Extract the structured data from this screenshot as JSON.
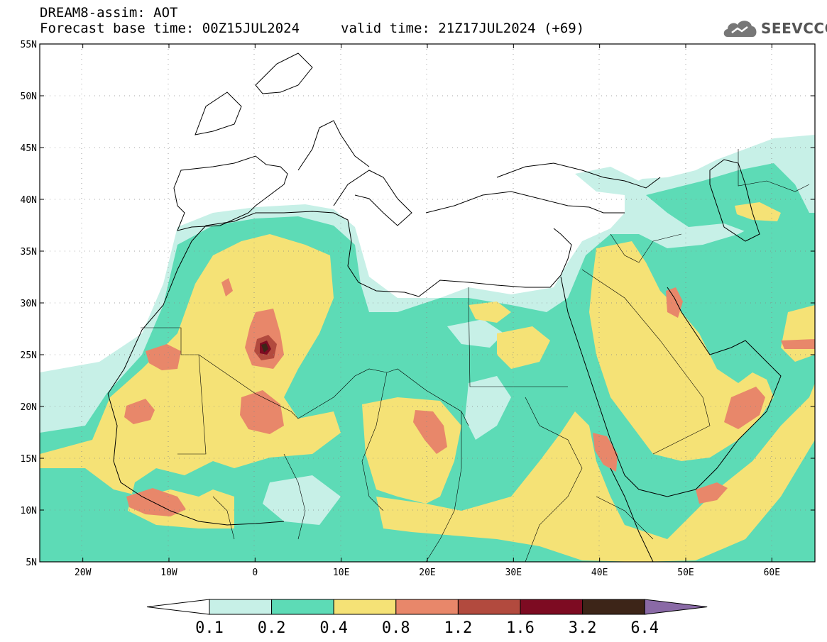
{
  "header": {
    "title": "DREAM8-assim: AOT",
    "base_time": "Forecast base time: 00Z15JUL2024",
    "valid_time": "valid time: 21Z17JUL2024 (+69)"
  },
  "logo": {
    "text": "SEEVCCC",
    "icon": "cloud-logo-icon"
  },
  "map": {
    "lon_range": [
      -25,
      65
    ],
    "lat_range": [
      5,
      55
    ],
    "lat_labels": [
      "55N",
      "50N",
      "45N",
      "40N",
      "35N",
      "30N",
      "25N",
      "20N",
      "15N",
      "10N",
      "5N"
    ],
    "lon_labels": [
      "20W",
      "10W",
      "0",
      "10E",
      "20E",
      "30E",
      "40E",
      "50E",
      "60E"
    ]
  },
  "colorbar": {
    "levels": [
      "0.1",
      "0.2",
      "0.4",
      "0.8",
      "1.2",
      "1.6",
      "3.2",
      "6.4"
    ],
    "colors": [
      "#c7f0e7",
      "#5ddbb6",
      "#f5e276",
      "#e8876a",
      "#b24a3e",
      "#7d0b22",
      "#3d2518"
    ],
    "under_color": "#ffffff",
    "over_color": "#8a6aa6"
  }
}
